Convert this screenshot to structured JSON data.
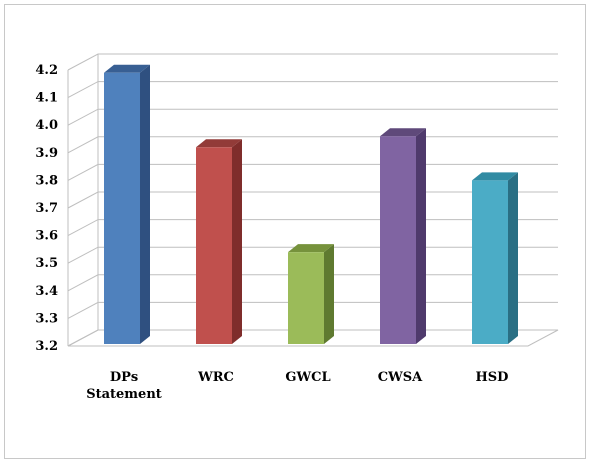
{
  "chart_data": {
    "type": "bar",
    "title": "",
    "xlabel": "",
    "ylabel": "",
    "categories": [
      [
        "DPs",
        "Statement"
      ],
      [
        "WRC"
      ],
      [
        "GWCL"
      ],
      [
        "CWSA"
      ],
      [
        "HSD"
      ]
    ],
    "values": [
      4.19,
      3.92,
      3.54,
      3.96,
      3.8
    ],
    "colors": [
      {
        "front": "#4f81bd",
        "side": "#2f5080",
        "top": "#385f93"
      },
      {
        "front": "#c0504d",
        "side": "#7f2d2b",
        "top": "#923b38"
      },
      {
        "front": "#9bbb59",
        "side": "#5f7a30",
        "top": "#76923c"
      },
      {
        "front": "#8064a2",
        "side": "#4f3a6c",
        "top": "#5f497a"
      },
      {
        "front": "#4bacc6",
        "side": "#2a6f84",
        "top": "#318ba3"
      }
    ],
    "ylim": [
      3.2,
      4.2
    ],
    "yticks": [
      "3.2",
      "3.3",
      "3.4",
      "3.5",
      "3.6",
      "3.7",
      "3.8",
      "3.9",
      "4.0",
      "4.1",
      "4.2"
    ],
    "grid": true,
    "style": "3d-column",
    "legend": "none"
  }
}
